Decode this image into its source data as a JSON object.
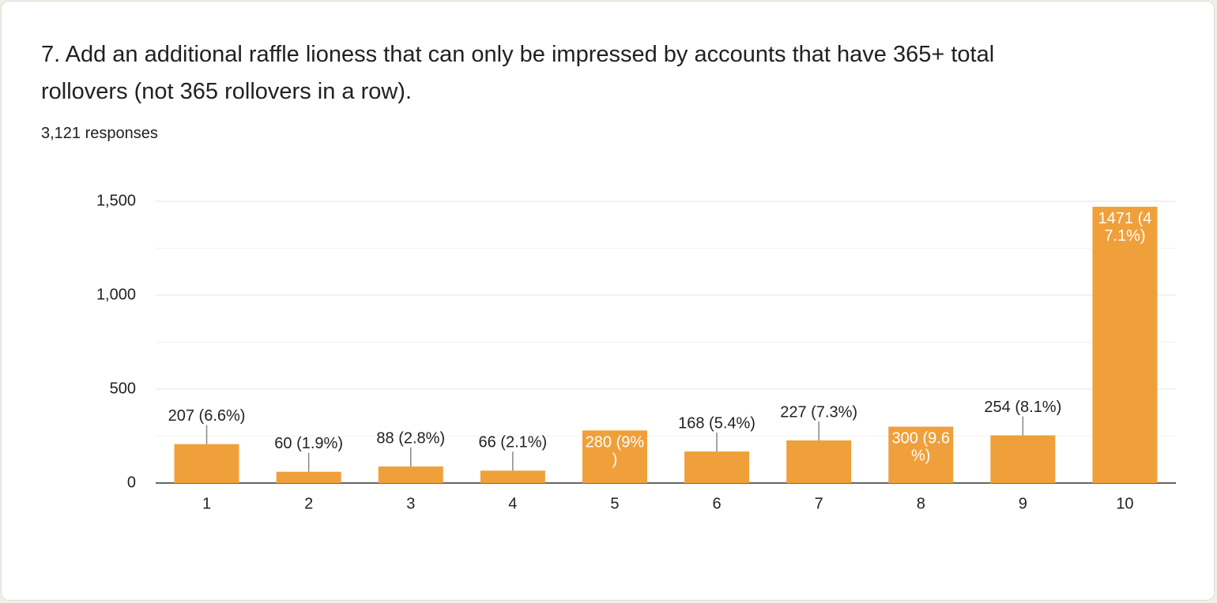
{
  "chart_data": {
    "type": "bar",
    "title": "7. Add an additional raffle lioness that can only be impressed by accounts that have 365+ total rollovers (not 365 rollovers in a row).",
    "subtitle": "3,121 responses",
    "categories": [
      "1",
      "2",
      "3",
      "4",
      "5",
      "6",
      "7",
      "8",
      "9",
      "10"
    ],
    "values": [
      207,
      60,
      88,
      66,
      280,
      168,
      227,
      300,
      254,
      1471
    ],
    "value_labels": [
      "207 (6.6%)",
      "60 (1.9%)",
      "88 (2.8%)",
      "66 (2.1%)",
      "280 (9%)",
      "168 (5.4%)",
      "227 (7.3%)",
      "300 (9.6%)",
      "254 (8.1%)",
      "1471 (47.1%)"
    ],
    "label_inside": [
      false,
      false,
      false,
      false,
      true,
      false,
      false,
      true,
      false,
      true
    ],
    "color": "#f0a03a",
    "ylim": [
      0,
      1500
    ],
    "yticks": [
      0,
      500,
      {
        "value": 1000,
        "label": "1,000"
      },
      {
        "value": 1500,
        "label": "1,500"
      }
    ],
    "minor_yticks": [
      250,
      750,
      1250
    ],
    "grid": true
  }
}
